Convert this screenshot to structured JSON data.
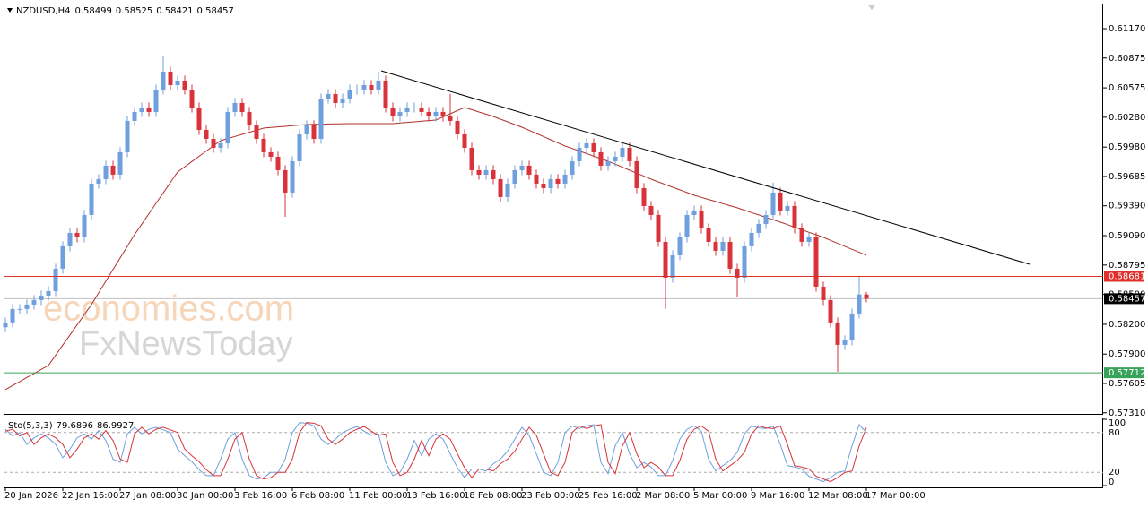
{
  "chart_data": {
    "type": "candlestick",
    "symbol": "NZDUSD,H4",
    "watermarks": [
      "economies.com",
      "FxNewsToday"
    ],
    "up_color": "#6f9fdc",
    "down_color": "#d8323a",
    "categories": [
      "20 Jan 2026",
      null,
      null,
      null,
      null,
      null,
      null,
      null,
      "22 Jan 16:00",
      null,
      null,
      null,
      null,
      null,
      null,
      null,
      "27 Jan 08:00",
      null,
      null,
      null,
      null,
      null,
      null,
      null,
      "30 Jan 00:00",
      null,
      null,
      null,
      null,
      null,
      null,
      null,
      "3 Feb 16:00",
      null,
      null,
      null,
      null,
      null,
      null,
      null,
      "6 Feb 08:00",
      null,
      null,
      null,
      null,
      null,
      null,
      null,
      "11 Feb 00:00",
      null,
      null,
      null,
      null,
      null,
      null,
      null,
      "13 Feb 16:00",
      null,
      null,
      null,
      null,
      null,
      null,
      null,
      "18 Feb 08:00",
      null,
      null,
      null,
      null,
      null,
      null,
      null,
      "23 Feb 00:00",
      null,
      null,
      null,
      null,
      null,
      null,
      null,
      "25 Feb 16:00",
      null,
      null,
      null,
      null,
      null,
      null,
      null,
      "2 Mar 08:00",
      null,
      null,
      null,
      null,
      null,
      null,
      null,
      "5 Mar 00:00",
      null,
      null,
      null,
      null,
      null,
      null,
      null,
      "9 Mar 16:00",
      null,
      null,
      null,
      null,
      null,
      null,
      null,
      "12 Mar 08:00",
      null,
      null,
      null,
      null,
      null,
      null,
      null,
      "17 Mar 00:00"
    ],
    "open": [
      0.5817,
      0.58218,
      0.58353,
      0.58353,
      0.58398,
      0.58443,
      0.58488,
      0.58533,
      0.58758,
      0.58983,
      0.59118,
      0.59073,
      0.59298,
      0.59613,
      0.59658,
      0.59793,
      0.59703,
      0.59928,
      0.60243,
      0.60333,
      0.60378,
      0.60333,
      0.60558,
      0.60738,
      0.60603,
      0.60648,
      0.60558,
      0.60378,
      0.60153,
      0.60063,
      0.59973,
      0.60018,
      0.60333,
      0.60423,
      0.60333,
      0.60198,
      0.60063,
      0.59928,
      0.59883,
      0.59748,
      0.59523,
      0.59838,
      0.60108,
      0.60198,
      0.60063,
      0.60468,
      0.60513,
      0.60423,
      0.60468,
      0.60558,
      0.60558,
      0.60603,
      0.60558,
      0.60648,
      0.60378,
      0.60288,
      0.60333,
      0.60378,
      0.60378,
      0.60333,
      0.60288,
      0.60333,
      0.60288,
      0.60243,
      0.60108,
      0.59973,
      0.59748,
      0.59703,
      0.59748,
      0.59658,
      0.59478,
      0.59613,
      0.59748,
      0.59793,
      0.59703,
      0.59613,
      0.59568,
      0.59658,
      0.59613,
      0.59703,
      0.59838,
      0.59973,
      0.60018,
      0.59928,
      0.59793,
      0.59838,
      0.59883,
      0.59973,
      0.59838,
      0.59568,
      0.59388,
      0.59298,
      0.59028,
      0.58668,
      0.58893,
      0.59073,
      0.59298,
      0.59343,
      0.59163,
      0.59028,
      0.58938,
      0.59028,
      0.58758,
      0.58668,
      0.58983,
      0.59118,
      0.59208,
      0.59298,
      0.59523,
      0.59343,
      0.59388,
      0.59163,
      0.59028,
      0.59073,
      0.58578,
      0.58443,
      0.58218,
      0.57993,
      0.58038,
      0.58308,
      0.58499
    ],
    "high": [
      0.58268,
      0.58403,
      0.58403,
      0.58448,
      0.58493,
      0.58538,
      0.58583,
      0.58808,
      0.59033,
      0.59168,
      0.59168,
      0.59348,
      0.59663,
      0.59708,
      0.59843,
      0.59843,
      0.59978,
      0.60293,
      0.60383,
      0.60428,
      0.60428,
      0.60608,
      0.609,
      0.60788,
      0.60698,
      0.60698,
      0.60608,
      0.60428,
      0.60203,
      0.60113,
      0.60068,
      0.60383,
      0.60473,
      0.60473,
      0.60383,
      0.60248,
      0.60113,
      0.59978,
      0.59933,
      0.59798,
      0.59888,
      0.60158,
      0.60248,
      0.60248,
      0.60518,
      0.60563,
      0.60563,
      0.60518,
      0.60608,
      0.60608,
      0.60653,
      0.60653,
      0.60738,
      0.60698,
      0.60428,
      0.60383,
      0.60428,
      0.60428,
      0.60428,
      0.60383,
      0.60383,
      0.60383,
      0.60513,
      0.60293,
      0.60158,
      0.60023,
      0.59798,
      0.59798,
      0.59798,
      0.59708,
      0.59663,
      0.59798,
      0.59843,
      0.59843,
      0.59753,
      0.59663,
      0.59708,
      0.59708,
      0.59753,
      0.59888,
      0.60023,
      0.60068,
      0.60068,
      0.59978,
      0.59888,
      0.59933,
      0.60023,
      0.60023,
      0.59888,
      0.59618,
      0.59438,
      0.59348,
      0.59078,
      0.58943,
      0.59123,
      0.59348,
      0.59393,
      0.59393,
      0.59213,
      0.59078,
      0.59078,
      0.59078,
      0.58808,
      0.59033,
      0.59168,
      0.59258,
      0.59348,
      0.59623,
      0.59573,
      0.59438,
      0.59438,
      0.59213,
      0.59123,
      0.59123,
      0.58628,
      0.58493,
      0.58268,
      0.58088,
      0.58358,
      0.58681,
      0.58525
    ],
    "low": [
      0.5812,
      0.58168,
      0.58303,
      0.58303,
      0.58348,
      0.58393,
      0.58438,
      0.58483,
      0.58708,
      0.58933,
      0.59023,
      0.59023,
      0.59248,
      0.59563,
      0.59608,
      0.59653,
      0.59653,
      0.59878,
      0.60193,
      0.60283,
      0.60283,
      0.60283,
      0.60508,
      0.60553,
      0.60553,
      0.60508,
      0.60328,
      0.60103,
      0.60013,
      0.59923,
      0.59923,
      0.59968,
      0.60283,
      0.60283,
      0.60148,
      0.60013,
      0.59878,
      0.59833,
      0.59698,
      0.5928,
      0.59473,
      0.59788,
      0.60058,
      0.60013,
      0.60013,
      0.60418,
      0.60373,
      0.60373,
      0.60418,
      0.60508,
      0.60508,
      0.60508,
      0.60508,
      0.60328,
      0.60238,
      0.60238,
      0.60283,
      0.60328,
      0.60283,
      0.60238,
      0.60238,
      0.60238,
      0.60193,
      0.60058,
      0.59923,
      0.59698,
      0.59653,
      0.59653,
      0.59608,
      0.59428,
      0.59428,
      0.59563,
      0.59698,
      0.59653,
      0.59563,
      0.59518,
      0.59518,
      0.59563,
      0.59563,
      0.59653,
      0.59788,
      0.59923,
      0.59878,
      0.59743,
      0.59743,
      0.59788,
      0.59833,
      0.59788,
      0.59518,
      0.59338,
      0.59248,
      0.58978,
      0.58353,
      0.58618,
      0.58843,
      0.59023,
      0.59248,
      0.59113,
      0.58978,
      0.58888,
      0.58888,
      0.58708,
      0.58478,
      0.58618,
      0.58933,
      0.59068,
      0.59158,
      0.59248,
      0.59293,
      0.59293,
      0.59113,
      0.58978,
      0.58978,
      0.58528,
      0.58393,
      0.58168,
      0.57723,
      0.57943,
      0.57988,
      0.58258,
      0.58421
    ],
    "close": [
      0.58218,
      0.58353,
      0.58353,
      0.58398,
      0.58443,
      0.58488,
      0.58533,
      0.58758,
      0.58983,
      0.59118,
      0.59073,
      0.59298,
      0.59613,
      0.59658,
      0.59793,
      0.59703,
      0.59928,
      0.60243,
      0.60333,
      0.60378,
      0.60333,
      0.60558,
      0.60738,
      0.60603,
      0.60648,
      0.60558,
      0.60378,
      0.60153,
      0.60063,
      0.59973,
      0.60018,
      0.60333,
      0.60423,
      0.60333,
      0.60198,
      0.60063,
      0.59928,
      0.59883,
      0.59748,
      0.59523,
      0.59838,
      0.60108,
      0.60198,
      0.60063,
      0.60468,
      0.60513,
      0.60423,
      0.60468,
      0.60558,
      0.60558,
      0.60603,
      0.60558,
      0.60648,
      0.60378,
      0.60288,
      0.60333,
      0.60378,
      0.60378,
      0.60333,
      0.60288,
      0.60333,
      0.60288,
      0.60243,
      0.60108,
      0.59973,
      0.59748,
      0.59703,
      0.59748,
      0.59658,
      0.59478,
      0.59613,
      0.59748,
      0.59793,
      0.59703,
      0.59613,
      0.59568,
      0.59658,
      0.59613,
      0.59703,
      0.59838,
      0.59973,
      0.60018,
      0.59928,
      0.59793,
      0.59838,
      0.59883,
      0.59973,
      0.59838,
      0.59568,
      0.59388,
      0.59298,
      0.59028,
      0.58668,
      0.58893,
      0.59073,
      0.59298,
      0.59343,
      0.59163,
      0.59028,
      0.58938,
      0.59028,
      0.58758,
      0.58668,
      0.58983,
      0.59118,
      0.59208,
      0.59298,
      0.59523,
      0.59343,
      0.59388,
      0.59163,
      0.59028,
      0.59073,
      0.58578,
      0.58443,
      0.58218,
      0.57993,
      0.58038,
      0.58308,
      0.58499,
      0.58457
    ],
    "ma": {
      "color": "#b0302a",
      "values": [
        0.57543,
        0.57584,
        0.57624,
        0.57665,
        0.57705,
        0.57746,
        0.57786,
        0.57888,
        0.5799,
        0.58092,
        0.58194,
        0.58296,
        0.58398,
        0.58515,
        0.58632,
        0.58749,
        0.58866,
        0.58983,
        0.591,
        0.59205,
        0.5931,
        0.59415,
        0.5952,
        0.59625,
        0.5973,
        0.59783,
        0.59835,
        0.59888,
        0.5994,
        0.59993,
        0.60045,
        0.60066,
        0.60087,
        0.60108,
        0.60129,
        0.6015,
        0.60171,
        0.60177,
        0.60183,
        0.60189,
        0.60195,
        0.60201,
        0.60207,
        0.60209,
        0.6021,
        0.60212,
        0.60213,
        0.60215,
        0.60216,
        0.60216,
        0.60216,
        0.60216,
        0.60216,
        0.60216,
        0.60216,
        0.60222,
        0.60228,
        0.60234,
        0.6024,
        0.60246,
        0.60252,
        0.60284,
        0.60315,
        0.60347,
        0.60378,
        0.60356,
        0.60333,
        0.60311,
        0.60288,
        0.60261,
        0.60234,
        0.60207,
        0.6018,
        0.60149,
        0.60117,
        0.60086,
        0.60054,
        0.60023,
        0.59991,
        0.59966,
        0.5994,
        0.59915,
        0.59889,
        0.59864,
        0.59838,
        0.59808,
        0.59778,
        0.59748,
        0.59718,
        0.59688,
        0.59658,
        0.59631,
        0.59604,
        0.59577,
        0.5955,
        0.59523,
        0.59496,
        0.59475,
        0.59454,
        0.59433,
        0.59412,
        0.59391,
        0.5937,
        0.59346,
        0.59322,
        0.59298,
        0.59274,
        0.5925,
        0.59226,
        0.59201,
        0.59175,
        0.5915,
        0.59124,
        0.59099,
        0.59073,
        0.59043,
        0.59013,
        0.58983,
        0.58953,
        0.58923,
        0.58893
      ]
    },
    "ylim": [
      0.5729,
      0.61413
    ],
    "yticks": [
      {
        "value": 0.6117,
        "label": "0.61170"
      },
      0.60875,
      0.60575,
      {
        "value": 0.6028,
        "label": "0.60280"
      },
      {
        "value": 0.5998,
        "label": "0.59980"
      },
      0.59685,
      {
        "value": 0.5939,
        "label": "0.59390"
      },
      {
        "value": 0.5909,
        "label": "0.59090"
      },
      0.58795,
      {
        "value": 0.585,
        "label": "0.58500"
      },
      {
        "value": 0.582,
        "label": "0.58200"
      },
      {
        "value": 0.579,
        "label": "0.57900"
      },
      0.57605,
      {
        "value": 0.5731,
        "label": "0.57310"
      }
    ],
    "levels": [
      {
        "value": 0.58681,
        "color": "#e0302c"
      },
      {
        "value": 0.57712,
        "color": "#3aa35b"
      }
    ],
    "indicator": {
      "type": "line",
      "title": "Sto(5,3,3)",
      "ylim": [
        0,
        100
      ],
      "yticks": [
        0,
        20,
        80,
        100
      ],
      "series": [
        {
          "color": "#6f9fdc",
          "values": [
            85,
            75,
            80,
            62,
            72,
            78,
            72,
            62,
            42,
            55,
            72,
            78,
            70,
            83,
            68,
            40,
            35,
            78,
            88,
            78,
            85,
            88,
            84,
            80,
            55,
            45,
            36,
            24,
            15,
            15,
            40,
            70,
            80,
            40,
            15,
            10,
            12,
            20,
            20,
            40,
            80,
            95,
            94,
            90,
            70,
            62,
            70,
            80,
            85,
            89,
            82,
            76,
            78,
            35,
            15,
            20,
            40,
            68,
            45,
            70,
            78,
            70,
            48,
            27,
            12,
            25,
            25,
            22,
            33,
            40,
            52,
            70,
            88,
            76,
            48,
            20,
            15,
            35,
            80,
            90,
            86,
            90,
            92,
            35,
            18,
            60,
            80,
            48,
            27,
            35,
            28,
            15,
            15,
            38,
            70,
            85,
            90,
            82,
            40,
            22,
            30,
            38,
            50,
            78,
            90,
            87,
            86,
            90,
            62,
            30,
            28,
            25,
            14,
            10,
            6,
            12,
            20,
            22,
            60,
            92,
            79.6896
          ]
        },
        {
          "color": "#d8323a",
          "values": [
            82,
            85,
            75,
            80,
            62,
            72,
            78,
            72,
            62,
            42,
            55,
            72,
            78,
            70,
            83,
            68,
            40,
            35,
            78,
            88,
            78,
            85,
            88,
            84,
            80,
            55,
            45,
            36,
            24,
            15,
            15,
            40,
            70,
            80,
            40,
            15,
            10,
            12,
            20,
            20,
            40,
            80,
            95,
            94,
            90,
            70,
            62,
            70,
            80,
            85,
            89,
            82,
            76,
            78,
            35,
            15,
            20,
            40,
            68,
            45,
            70,
            78,
            70,
            48,
            27,
            12,
            25,
            25,
            22,
            33,
            40,
            52,
            70,
            88,
            76,
            48,
            20,
            15,
            35,
            80,
            90,
            86,
            90,
            92,
            35,
            18,
            60,
            80,
            48,
            27,
            35,
            28,
            15,
            15,
            38,
            70,
            85,
            90,
            82,
            40,
            22,
            30,
            38,
            50,
            78,
            90,
            87,
            86,
            90,
            62,
            30,
            28,
            25,
            14,
            10,
            6,
            12,
            20,
            22,
            60,
            86.9927
          ]
        }
      ]
    }
  }
}
